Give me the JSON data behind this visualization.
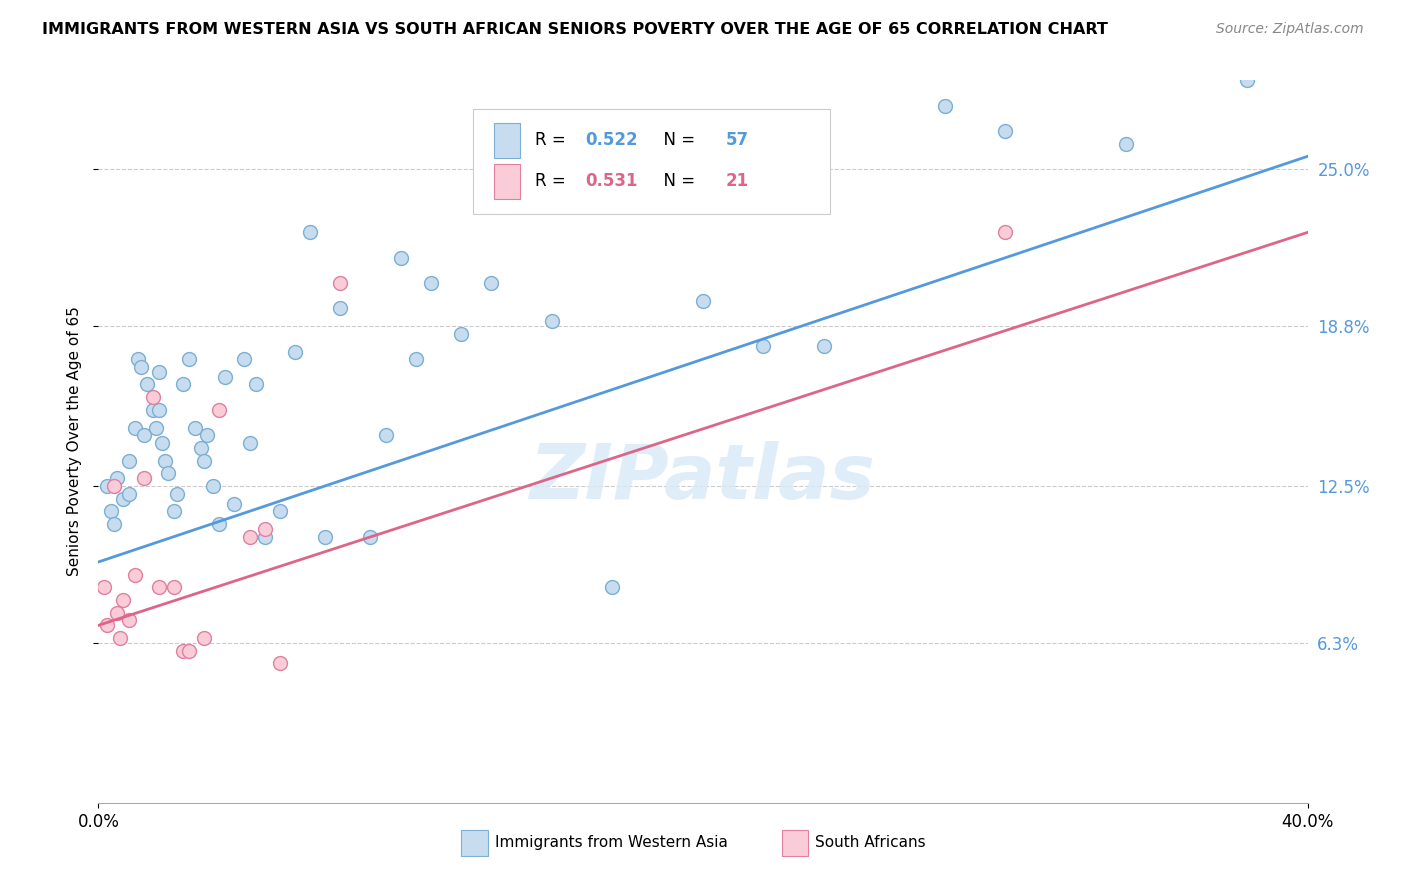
{
  "title": "IMMIGRANTS FROM WESTERN ASIA VS SOUTH AFRICAN SENIORS POVERTY OVER THE AGE OF 65 CORRELATION CHART",
  "source": "Source: ZipAtlas.com",
  "ylabel": "Seniors Poverty Over the Age of 65",
  "ytick_labels": [
    "6.3%",
    "12.5%",
    "18.8%",
    "25.0%"
  ],
  "ytick_values": [
    6.3,
    12.5,
    18.8,
    25.0
  ],
  "legend_blue_r": "0.522",
  "legend_blue_n": "57",
  "legend_pink_r": "0.531",
  "legend_pink_n": "21",
  "legend_blue_label": "Immigrants from Western Asia",
  "legend_pink_label": "South Africans",
  "blue_color": "#c8dcf0",
  "blue_edge_color": "#7bafd4",
  "pink_color": "#f9ccd8",
  "pink_edge_color": "#e080a0",
  "blue_line_color": "#5599dd",
  "pink_line_color": "#dd6688",
  "watermark": "ZIPatlas",
  "blue_scatter_x": [
    0.3,
    0.4,
    0.5,
    0.6,
    0.8,
    1.0,
    1.0,
    1.2,
    1.3,
    1.4,
    1.5,
    1.6,
    1.8,
    1.9,
    2.0,
    2.0,
    2.1,
    2.2,
    2.3,
    2.5,
    2.6,
    2.8,
    3.0,
    3.2,
    3.4,
    3.5,
    3.6,
    3.8,
    4.0,
    4.2,
    4.5,
    4.8,
    5.0,
    5.2,
    5.5,
    6.0,
    6.5,
    7.0,
    7.5,
    8.0,
    9.0,
    9.5,
    10.0,
    10.5,
    11.0,
    12.0,
    13.0,
    14.0,
    15.0,
    17.0,
    20.0,
    22.0,
    24.0,
    28.0,
    30.0,
    34.0,
    38.0
  ],
  "blue_scatter_y": [
    12.5,
    11.5,
    11.0,
    12.8,
    12.0,
    13.5,
    12.2,
    14.8,
    17.5,
    17.2,
    14.5,
    16.5,
    15.5,
    14.8,
    17.0,
    15.5,
    14.2,
    13.5,
    13.0,
    11.5,
    12.2,
    16.5,
    17.5,
    14.8,
    14.0,
    13.5,
    14.5,
    12.5,
    11.0,
    16.8,
    11.8,
    17.5,
    14.2,
    16.5,
    10.5,
    11.5,
    17.8,
    22.5,
    10.5,
    19.5,
    10.5,
    14.5,
    21.5,
    17.5,
    20.5,
    18.5,
    20.5,
    25.5,
    19.0,
    8.5,
    19.8,
    18.0,
    18.0,
    27.5,
    26.5,
    26.0,
    28.5
  ],
  "pink_scatter_x": [
    0.2,
    0.3,
    0.5,
    0.6,
    0.7,
    0.8,
    1.0,
    1.2,
    1.5,
    1.8,
    2.0,
    2.5,
    2.8,
    3.0,
    3.5,
    4.0,
    5.0,
    5.5,
    6.0,
    8.0,
    30.0
  ],
  "pink_scatter_y": [
    8.5,
    7.0,
    12.5,
    7.5,
    6.5,
    8.0,
    7.2,
    9.0,
    12.8,
    16.0,
    8.5,
    8.5,
    6.0,
    6.0,
    6.5,
    15.5,
    10.5,
    10.8,
    5.5,
    20.5,
    22.5
  ],
  "xmin": 0.0,
  "xmax": 40.0,
  "ymin": 0.0,
  "ymax": 28.5,
  "marker_size": 100
}
